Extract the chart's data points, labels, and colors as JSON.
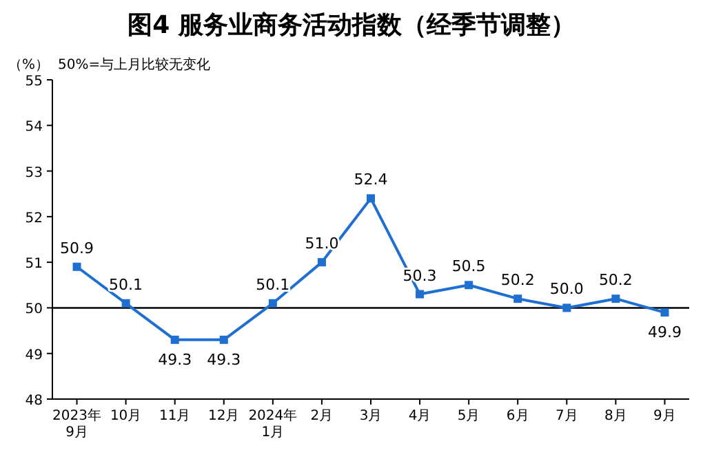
{
  "chart_data": {
    "type": "line",
    "title": "图4  服务业商务活动指数（经季节调整）",
    "ylabel": "（%）",
    "annotations": [
      "50%=与上月比较无变化"
    ],
    "categories": [
      "2023年\n9月",
      "10月",
      "11月",
      "12月",
      "2024年\n1月",
      "2月",
      "3月",
      "4月",
      "5月",
      "6月",
      "7月",
      "8月",
      "9月"
    ],
    "series": [
      {
        "color": "#1f6fd1",
        "values": [
          50.9,
          50.1,
          49.3,
          49.3,
          50.1,
          51.0,
          52.4,
          50.3,
          50.5,
          50.2,
          50.0,
          50.2,
          49.9
        ],
        "value_labels": [
          "50.9",
          "50.1",
          "49.3",
          "49.3",
          "50.1",
          "51.0",
          "52.4",
          "50.3",
          "50.5",
          "50.2",
          "50.0",
          "50.2",
          "49.9"
        ]
      }
    ],
    "ylim": [
      48,
      55
    ],
    "yticks": [
      48,
      49,
      50,
      51,
      52,
      53,
      54,
      55
    ],
    "ref_lines": [
      {
        "axis": "y",
        "value": 50,
        "color": "#000000"
      }
    ],
    "marker": "square",
    "line_style": "solid",
    "grid": false
  }
}
